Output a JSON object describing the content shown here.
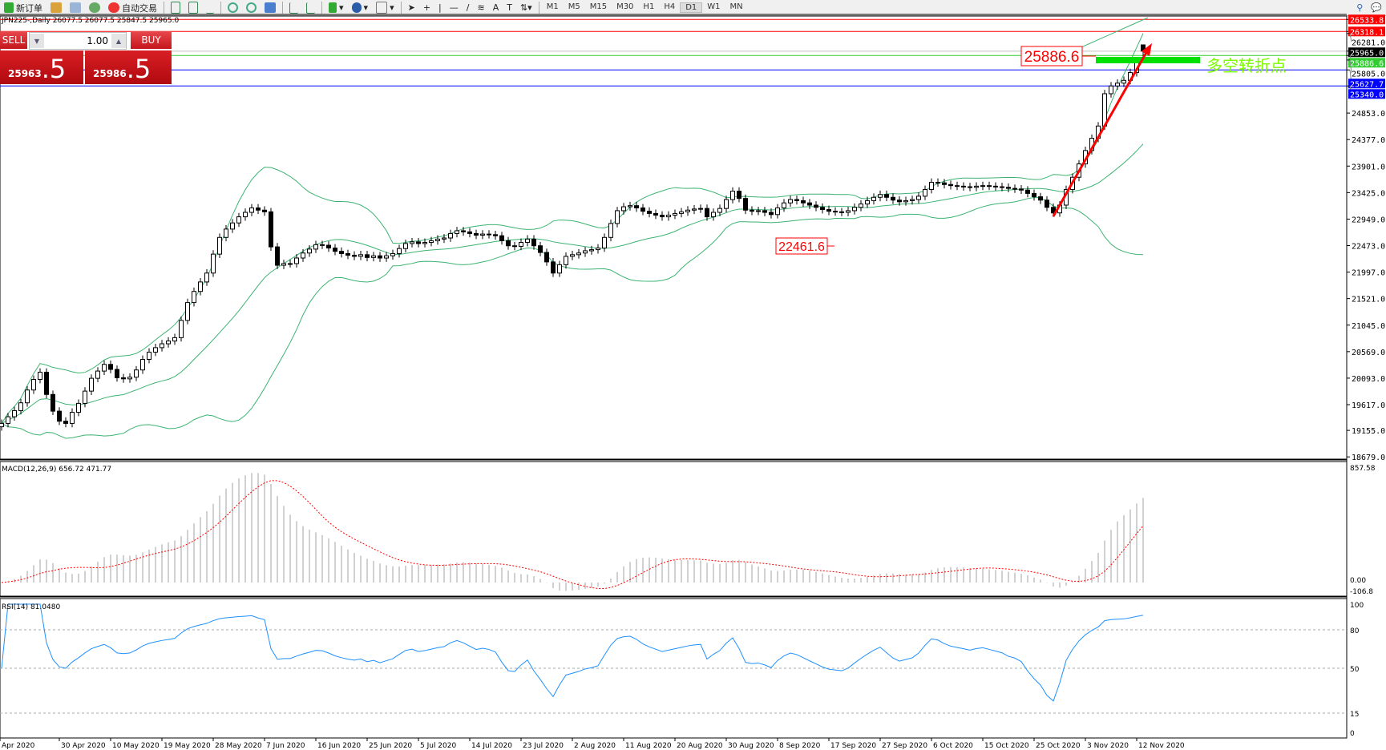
{
  "toolbar": {
    "new_order": "新订单",
    "auto_trading": "自动交易",
    "timeframes": [
      "M1",
      "M5",
      "M15",
      "M30",
      "H1",
      "H4",
      "D1",
      "W1",
      "MN"
    ],
    "active_timeframe": "D1"
  },
  "chart_header": "JPN225-,Daily  26077.5 26077.5 25847.5 25965.0",
  "one_click": {
    "sell_label": "SELL",
    "buy_label": "BUY",
    "lot": "1.00",
    "sell_big": "25963",
    "sell_pip": ".5",
    "buy_big": "25986",
    "buy_pip": ".5"
  },
  "colors": {
    "up_body": "#ffffff",
    "down_body": "#000000",
    "bands": "#3cb371",
    "macd_hist": "#c0c0c0",
    "macd_signal": "#ff0000",
    "rsi": "#1e90ff",
    "hline_red": "#ff0000",
    "hline_green": "#32cd32",
    "hline_blue": "#0000ff"
  },
  "chart_data": [
    {
      "type": "candlestick",
      "symbol": "JPN225-",
      "timeframe": "Daily",
      "last_bar": {
        "open": 26077.5,
        "high": 26077.5,
        "low": 25847.5,
        "close": 25965.0
      },
      "closes": [
        19280,
        19400,
        19510,
        19650,
        19880,
        20070,
        20200,
        19800,
        19500,
        19320,
        19280,
        19480,
        19640,
        19860,
        20090,
        20220,
        20340,
        20250,
        20100,
        20080,
        20110,
        20240,
        20430,
        20560,
        20640,
        20710,
        20760,
        20820,
        21130,
        21450,
        21650,
        21820,
        21980,
        22320,
        22620,
        22770,
        22880,
        22990,
        23070,
        23150,
        23110,
        23080,
        22450,
        22120,
        22150,
        22150,
        22250,
        22340,
        22410,
        22490,
        22480,
        22430,
        22370,
        22330,
        22300,
        22280,
        22310,
        22260,
        22290,
        22250,
        22290,
        22330,
        22420,
        22510,
        22540,
        22510,
        22530,
        22560,
        22590,
        22610,
        22690,
        22740,
        22720,
        22690,
        22660,
        22680,
        22670,
        22650,
        22560,
        22470,
        22460,
        22530,
        22590,
        22470,
        22350,
        22180,
        21980,
        22130,
        22280,
        22310,
        22340,
        22380,
        22400,
        22430,
        22620,
        22870,
        23100,
        23170,
        23190,
        23150,
        23090,
        23050,
        23020,
        22990,
        23020,
        23050,
        23080,
        23110,
        23130,
        23140,
        22990,
        23070,
        23140,
        23300,
        23450,
        23320,
        23110,
        23090,
        23100,
        23070,
        23030,
        23150,
        23240,
        23300,
        23280,
        23240,
        23200,
        23160,
        23120,
        23090,
        23080,
        23070,
        23100,
        23160,
        23220,
        23280,
        23340,
        23390,
        23340,
        23290,
        23260,
        23280,
        23300,
        23360,
        23480,
        23610,
        23600,
        23570,
        23550,
        23540,
        23530,
        23520,
        23540,
        23550,
        23540,
        23530,
        23520,
        23500,
        23490,
        23470,
        23410,
        23350,
        23290,
        23160,
        23060,
        23200,
        23480,
        23700,
        23940,
        24180,
        24400,
        24620,
        25200,
        25340,
        25390,
        25440,
        25580,
        25780,
        25965
      ],
      "indicator": "Bollinger Bands",
      "price_ticks": [
        "24853.0",
        "24377.0",
        "23901.0",
        "23425.0",
        "22949.0",
        "22473.0",
        "21997.0",
        "21521.0",
        "21045.0",
        "20569.0",
        "20093.0",
        "19617.0",
        "19155.0",
        "18679.0"
      ],
      "ylim": [
        18679.0,
        26533.8
      ],
      "hlines": [
        {
          "value": "26533.8",
          "color": "#ff0000"
        },
        {
          "value": "26318.1",
          "color": "#ff0000"
        },
        {
          "value": "25965.0",
          "color": "#000000"
        },
        {
          "value": "25886.6",
          "color": "#32cd32"
        },
        {
          "value": "25627.7",
          "color": "#0000ff"
        },
        {
          "value": "25340.0",
          "color": "#0000ff"
        }
      ],
      "hidden_labels": [
        "26281.0",
        "25805.0"
      ],
      "annotations": {
        "high_label": "25886.6",
        "low_label": "22461.6",
        "pivot_text": "多空转折点"
      },
      "x_ticks": [
        "Apr 2020",
        "30 Apr 2020",
        "10 May 2020",
        "19 May 2020",
        "28 May 2020",
        "7 Jun 2020",
        "16 Jun 2020",
        "25 Jun 2020",
        "5 Jul 2020",
        "14 Jul 2020",
        "23 Jul 2020",
        "2 Aug 2020",
        "11 Aug 2020",
        "20 Aug 2020",
        "30 Aug 2020",
        "8 Sep 2020",
        "17 Sep 2020",
        "27 Sep 2020",
        "6 Oct 2020",
        "15 Oct 2020",
        "25 Oct 2020",
        "3 Nov 2020",
        "12 Nov 2020"
      ]
    },
    {
      "type": "bar",
      "title": "MACD(12,26,9) 656.72 471.77",
      "ylim": [
        -106.8,
        857.58
      ],
      "ticks": [
        "857.58",
        "0.00",
        "-106.8"
      ]
    },
    {
      "type": "line",
      "title": "RSI(14) 81.0480",
      "ylim": [
        0,
        100
      ],
      "ticks": [
        "100",
        "80",
        "50",
        "15",
        "0"
      ],
      "levels": [
        80,
        50,
        15
      ]
    }
  ]
}
